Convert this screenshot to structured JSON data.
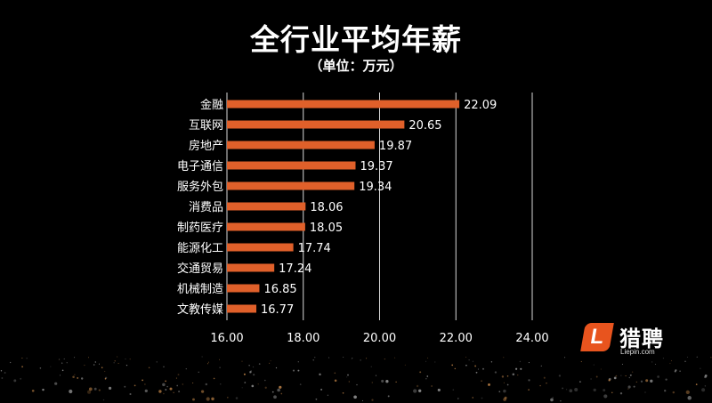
{
  "title": "全行业平均年薪",
  "subtitle": "（单位：万元）",
  "logo": {
    "mark": "L",
    "name": "猎聘",
    "url": "Liepin.com"
  },
  "colors": {
    "bar": "#e0602a",
    "grid": "#d9d9d9",
    "background": "#000000",
    "text": "#ffffff"
  },
  "chart_data": {
    "type": "bar",
    "orientation": "horizontal",
    "title": "全行业平均年薪",
    "subtitle": "（单位：万元）",
    "categories": [
      "金融",
      "互联网",
      "房地产",
      "电子通信",
      "服务外包",
      "消费品",
      "制药医疗",
      "能源化工",
      "交通贸易",
      "机械制造",
      "文教传媒"
    ],
    "values": [
      22.09,
      20.65,
      19.87,
      19.37,
      19.34,
      18.06,
      18.05,
      17.74,
      17.24,
      16.85,
      16.77
    ],
    "value_labels": [
      "22.09",
      "20.65",
      "19.87",
      "19.37",
      "19.34",
      "18.06",
      "18.05",
      "17.74",
      "17.24",
      "16.85",
      "16.77"
    ],
    "xlim": [
      16,
      24
    ],
    "xticks": [
      16,
      18,
      20,
      22,
      24
    ],
    "xtick_labels": [
      "16.00",
      "18.00",
      "20.00",
      "22.00",
      "24.00"
    ],
    "grid": true,
    "legend": "none"
  }
}
